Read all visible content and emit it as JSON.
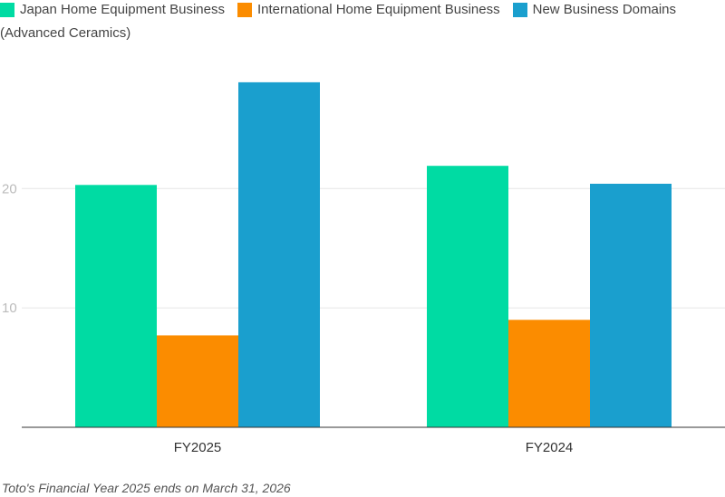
{
  "chart_data": {
    "type": "bar",
    "categories": [
      "FY2025",
      "FY2024"
    ],
    "series": [
      {
        "name": "Japan Home Equipment Business",
        "values": [
          20.3,
          21.9
        ],
        "color": "#00dba3"
      },
      {
        "name": "International Home Equipment Business",
        "values": [
          7.7,
          9.0
        ],
        "color": "#fb8c00"
      },
      {
        "name": "New Business Domains (Advanced Ceramics)",
        "values": [
          28.9,
          20.4
        ],
        "color": "#1a9fce"
      }
    ],
    "yticks": [
      10,
      20
    ],
    "ylim": [
      0,
      32
    ],
    "grid": true,
    "legend_position": "top-left"
  },
  "legend": {
    "item0": "Japan Home Equipment Business",
    "item1": "International Home Equipment Business",
    "item2_line1": "New Business Domains",
    "item2_line2": "(Advanced Ceramics)"
  },
  "footnote": "Toto's Financial Year 2025 ends on March 31, 2026"
}
